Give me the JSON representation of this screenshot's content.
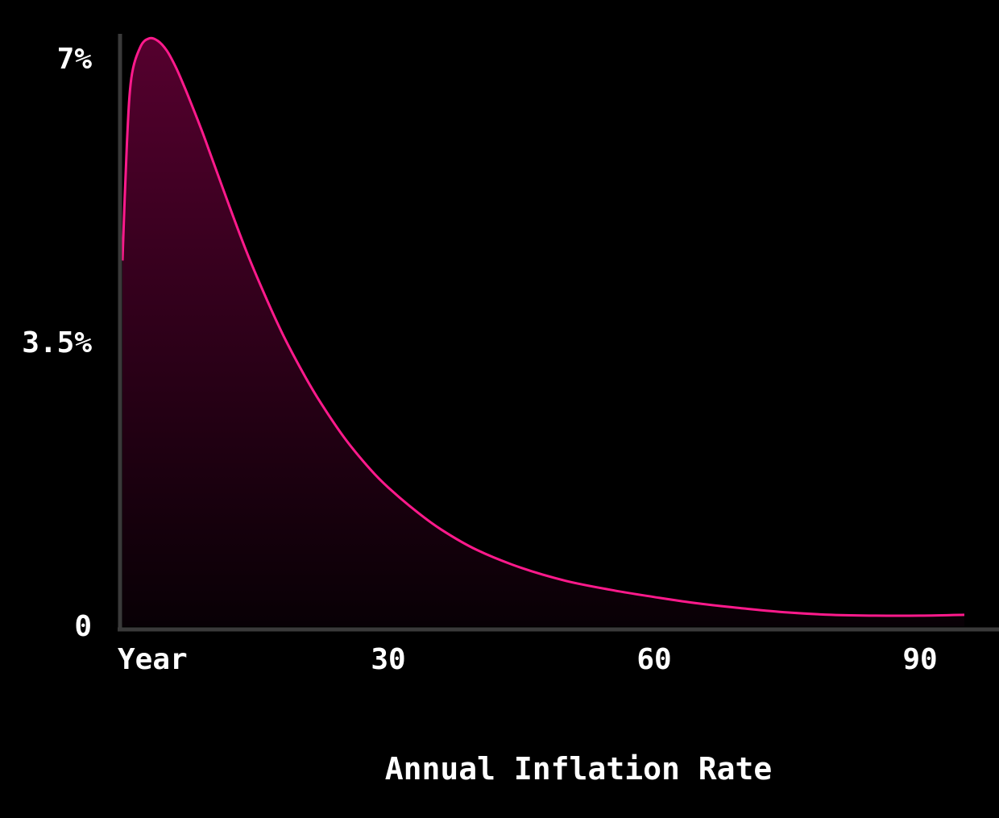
{
  "chart_data": {
    "type": "area",
    "xlabel": "Annual Inflation Rate",
    "ylabel": "",
    "title": "",
    "xlim": [
      0,
      95
    ],
    "ylim": [
      0,
      7
    ],
    "x_ticks": [
      {
        "value": 0,
        "label": "Year"
      },
      {
        "value": 30,
        "label": "30"
      },
      {
        "value": 60,
        "label": "60"
      },
      {
        "value": 90,
        "label": "90"
      }
    ],
    "y_ticks": [
      {
        "value": 7,
        "label": "7%"
      },
      {
        "value": 3.5,
        "label": "3.5%"
      },
      {
        "value": 0,
        "label": "0"
      }
    ],
    "grid": false,
    "legend": "none",
    "series": [
      {
        "x": [
          0,
          0.5,
          1,
          2,
          3,
          4,
          5,
          6,
          7,
          8,
          9,
          10,
          12,
          14,
          16,
          18,
          20,
          22,
          25,
          28,
          30,
          33,
          36,
          40,
          45,
          50,
          55,
          60,
          65,
          70,
          75,
          80,
          85,
          90,
          95
        ],
        "y": [
          4.51,
          5.95,
          6.76,
          7.14,
          7.25,
          7.22,
          7.1,
          6.9,
          6.65,
          6.38,
          6.1,
          5.8,
          5.2,
          4.62,
          4.1,
          3.62,
          3.2,
          2.82,
          2.33,
          1.93,
          1.71,
          1.43,
          1.19,
          0.94,
          0.72,
          0.56,
          0.45,
          0.36,
          0.28,
          0.22,
          0.17,
          0.14,
          0.13,
          0.13,
          0.14
        ]
      }
    ],
    "colors": {
      "background": "#000000",
      "line": "#ff1a8c",
      "fill_top": "#55002e",
      "fill_bottom": "#080005",
      "axis": "#3a3a3a",
      "text": "#ffffff"
    }
  }
}
